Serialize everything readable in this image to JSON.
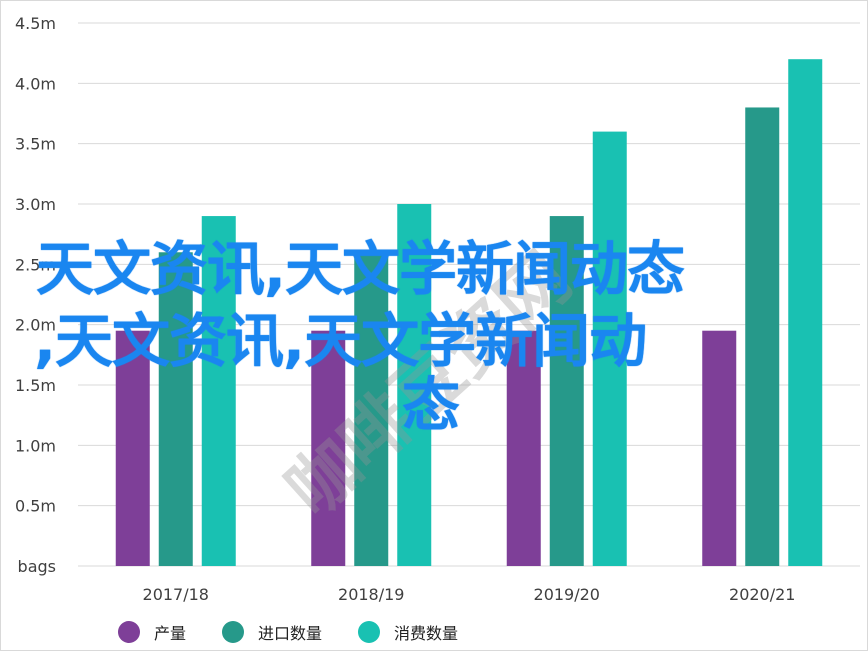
{
  "chart_data": {
    "type": "bar",
    "title": "",
    "xlabel": "",
    "ylabel": "",
    "categories": [
      "2017/18",
      "2018/19",
      "2019/20",
      "2020/21"
    ],
    "y_ticks": [
      "bags",
      "0.5m",
      "1.0m",
      "1.5m",
      "2.0m",
      "2.5m",
      "3.0m",
      "3.5m",
      "4.0m",
      "4.5m"
    ],
    "ylim": [
      0,
      4.5
    ],
    "y_unit": "million bags",
    "grid": true,
    "legend_position": "bottom",
    "series": [
      {
        "name": "产量",
        "color": "#7e3f98",
        "values": [
          1.95,
          1.95,
          1.95,
          1.95
        ]
      },
      {
        "name": "进口数量",
        "color": "#26998a",
        "values": [
          2.6,
          2.6,
          2.9,
          3.8
        ]
      },
      {
        "name": "消费数量",
        "color": "#19c1b2",
        "values": [
          2.9,
          3.0,
          3.6,
          4.2
        ]
      }
    ]
  },
  "watermark": {
    "line1": "天文资讯,天文学新闻动态",
    "line2": ",天文资讯,天文学新闻动",
    "line3": "态",
    "stamp": "咖啡豆资网"
  }
}
